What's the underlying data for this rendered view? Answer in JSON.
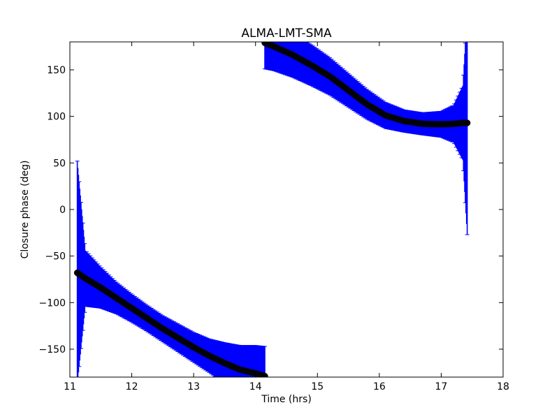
{
  "chart_data": {
    "type": "scatter",
    "title": "ALMA-LMT-SMA",
    "xlabel": "Time (hrs)",
    "ylabel": "Closure phase (deg)",
    "xlim": [
      11,
      18
    ],
    "ylim": [
      -180,
      180
    ],
    "xticks": [
      11,
      12,
      13,
      14,
      15,
      16,
      17,
      18
    ],
    "yticks": [
      -150,
      -100,
      -50,
      0,
      50,
      100,
      150
    ],
    "grid": false,
    "legend": "none",
    "colors": {
      "points": "#000000",
      "errorbars": "#0000ff"
    },
    "series": [
      {
        "x": [
          11.12,
          11.25,
          11.5,
          11.75,
          12.0,
          12.25,
          12.5,
          12.75,
          13.0,
          13.25,
          13.5,
          13.75,
          14.0,
          14.15
        ],
        "y": [
          -68,
          -74,
          -84,
          -95,
          -106,
          -117,
          -128,
          -138,
          -148,
          -157,
          -165,
          -172,
          -176,
          -179
        ],
        "err": [
          120,
          30,
          22,
          17,
          15,
          14,
          14,
          15,
          16,
          18,
          22,
          26,
          30,
          32
        ]
      },
      {
        "x": [
          14.15,
          14.3,
          14.6,
          14.9,
          15.2,
          15.5,
          15.8,
          16.1,
          16.4,
          16.7,
          17.0,
          17.2,
          17.35,
          17.42
        ],
        "y": [
          179,
          175,
          166,
          155,
          143,
          128,
          113,
          101,
          95,
          92,
          91.5,
          92,
          93,
          93
        ],
        "err": [
          28,
          26,
          24,
          22,
          20,
          18,
          16,
          14,
          12,
          12,
          14,
          20,
          40,
          120
        ]
      }
    ]
  }
}
